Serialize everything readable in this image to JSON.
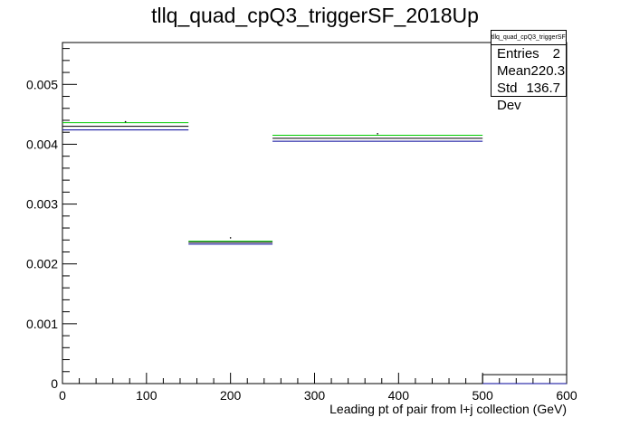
{
  "chart_data": {
    "type": "histogram",
    "title": "tllq_quad_cpQ3_triggerSF_2018Up",
    "xlabel": "Leading pt of pair from l+j collection (GeV)",
    "ylabel": "",
    "xlim": [
      0,
      600
    ],
    "ylim": [
      0,
      0.0057
    ],
    "x_ticks": [
      0,
      100,
      200,
      300,
      400,
      500,
      600
    ],
    "y_ticks": [
      0,
      0.001,
      0.002,
      0.003,
      0.004,
      0.005
    ],
    "y_tick_labels": [
      "0",
      "0.001",
      "0.002",
      "0.003",
      "0.004",
      "0.005"
    ],
    "bins": [
      {
        "low": 0,
        "high": 150
      },
      {
        "low": 150,
        "high": 250
      },
      {
        "low": 250,
        "high": 500
      },
      {
        "low": 500,
        "high": 600
      }
    ],
    "series": [
      {
        "color": "#00cc00",
        "values": [
          0.00436,
          0.00238,
          0.00415,
          0.0
        ]
      },
      {
        "color": "#000000",
        "values": [
          0.0043,
          0.00236,
          0.0041,
          0.0
        ]
      },
      {
        "color": "#000099",
        "values": [
          0.00424,
          0.00233,
          0.00405,
          0.0
        ]
      }
    ],
    "stats": {
      "name": "tllq_quad_cpQ3_triggerSF_2018Up",
      "rows": [
        {
          "label": "Entries",
          "value": "2"
        },
        {
          "label": "Mean",
          "value": "220.3"
        },
        {
          "label": "Std Dev",
          "value": "136.7"
        }
      ]
    }
  }
}
